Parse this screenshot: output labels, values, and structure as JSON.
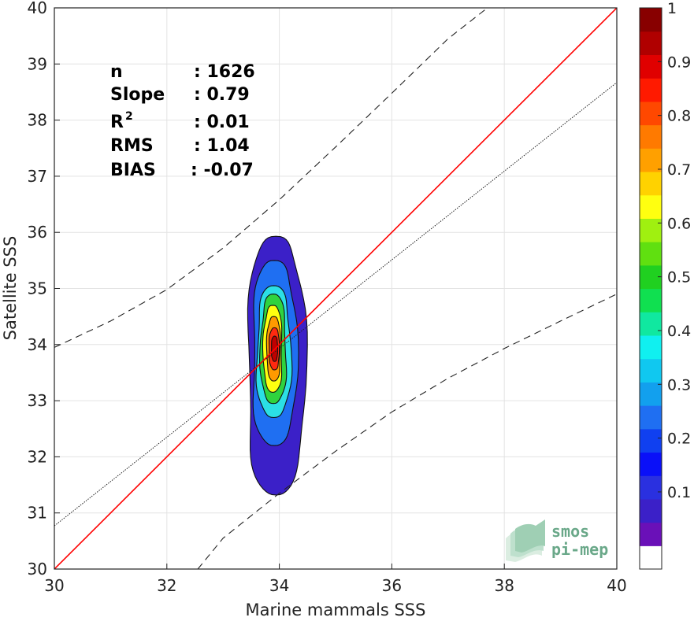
{
  "chart_data": {
    "type": "scatter",
    "xlabel": "Marine mammals SSS",
    "ylabel": "Satellite SSS",
    "xlim": [
      30,
      40
    ],
    "ylim": [
      30,
      40
    ],
    "xticks": [
      "30",
      "32",
      "34",
      "36",
      "38",
      "40"
    ],
    "yticks": [
      "30",
      "31",
      "32",
      "33",
      "34",
      "35",
      "36",
      "37",
      "38",
      "39",
      "40"
    ],
    "grid": true,
    "stats": [
      {
        "key": "n",
        "value": ": 1626"
      },
      {
        "key": "Slope",
        "value": ": 0.79"
      },
      {
        "key": "R",
        "sup": "2",
        "value": ": 0.01"
      },
      {
        "key": "RMS",
        "value": ": 1.04"
      },
      {
        "key": "BIAS",
        "value": ": -0.07"
      }
    ],
    "identity_line": {
      "color": "#ff0000",
      "x": [
        30,
        40
      ],
      "y": [
        30,
        40
      ]
    },
    "regression_line": {
      "x": [
        30,
        40
      ],
      "y": [
        30.77,
        38.67
      ]
    },
    "confidence_upper": {
      "x": [
        30,
        31,
        32,
        33,
        34,
        35,
        36,
        37,
        37.7
      ],
      "y": [
        33.95,
        34.42,
        34.98,
        35.72,
        36.58,
        37.52,
        38.48,
        39.45,
        40.0
      ]
    },
    "confidence_lower": {
      "x": [
        32.55,
        33.0,
        34.0,
        35.0,
        36.0,
        37.0,
        38.0,
        39.0,
        40.0
      ],
      "y": [
        30.0,
        30.55,
        31.35,
        32.1,
        32.8,
        33.4,
        33.93,
        34.42,
        34.9
      ]
    },
    "density_contours": [
      {
        "level": 0.05,
        "xmin": 33.43,
        "xmax": 34.45,
        "ymin": 31.32,
        "ymax": 35.93,
        "color": "#3b20c8"
      },
      {
        "level": 0.15,
        "xmin": 33.52,
        "xmax": 34.3,
        "ymin": 32.2,
        "ymax": 35.5,
        "color": "#1f6ff2"
      },
      {
        "level": 0.3,
        "xmin": 33.6,
        "xmax": 34.2,
        "ymin": 32.7,
        "ymax": 35.05,
        "color": "#2bdfe5"
      },
      {
        "level": 0.45,
        "xmin": 33.67,
        "xmax": 34.12,
        "ymin": 32.95,
        "ymax": 34.9,
        "color": "#2fd33e"
      },
      {
        "level": 0.6,
        "xmin": 33.72,
        "xmax": 34.05,
        "ymin": 33.15,
        "ymax": 34.7,
        "color": "#ffff10"
      },
      {
        "level": 0.7,
        "xmin": 33.78,
        "xmax": 34.02,
        "ymin": 33.35,
        "ymax": 34.5,
        "color": "#ff9a00"
      },
      {
        "level": 0.85,
        "xmin": 33.82,
        "xmax": 34.0,
        "ymin": 33.55,
        "ymax": 34.3,
        "color": "#ff2a10"
      },
      {
        "level": 0.95,
        "xmin": 33.86,
        "xmax": 33.97,
        "ymin": 33.7,
        "ymax": 34.15,
        "color": "#c00000"
      }
    ],
    "colorbar": {
      "ticks": [
        "0.1",
        "0.2",
        "0.3",
        "0.4",
        "0.5",
        "0.6",
        "0.7",
        "0.8",
        "0.9",
        "1"
      ],
      "colors": [
        "#ffffff",
        "#6a10b8",
        "#3b20c8",
        "#2a30e0",
        "#0a10f8",
        "#1040f0",
        "#1f6ff2",
        "#12a0ee",
        "#10c8f0",
        "#10f0f0",
        "#10e8a0",
        "#10e050",
        "#20d020",
        "#60e010",
        "#a0f010",
        "#ffff10",
        "#ffd200",
        "#ffa000",
        "#ff7a00",
        "#ff4800",
        "#ff1a00",
        "#e00000",
        "#b00000",
        "#880000"
      ]
    }
  },
  "logo": {
    "line1": "smos",
    "line2": "pi-mep"
  }
}
